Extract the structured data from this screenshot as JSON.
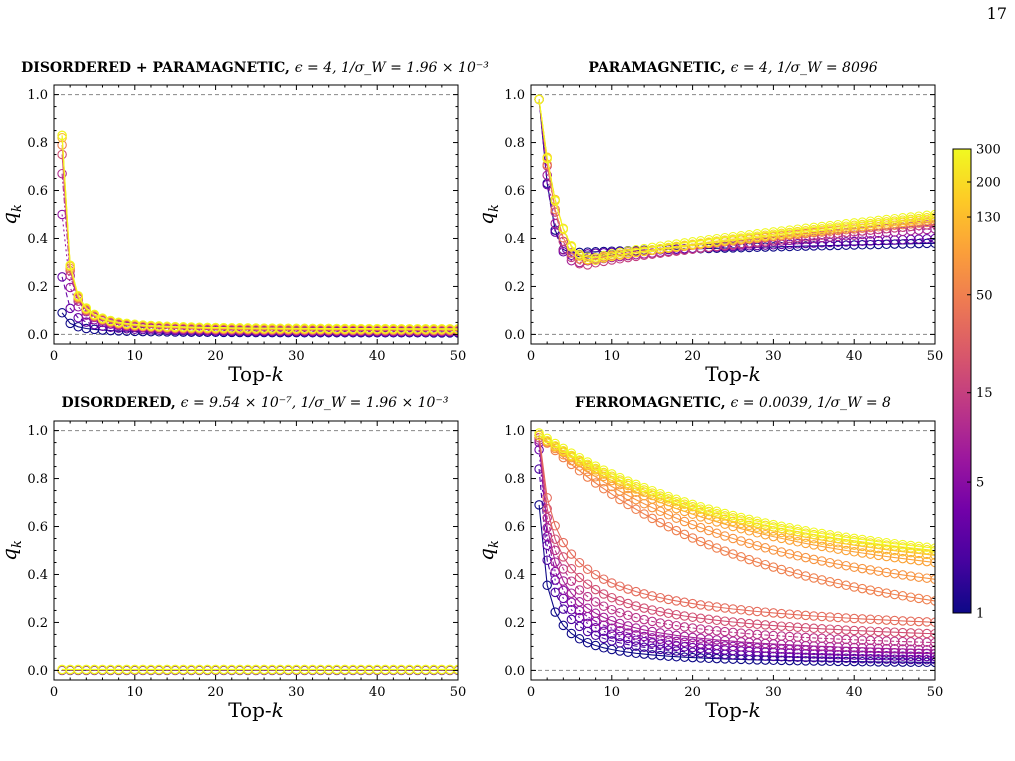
{
  "page_number": "17",
  "colorbar": {
    "colormap": "plasma",
    "colors": [
      "#0d0887",
      "#46039f",
      "#7201a8",
      "#9c179e",
      "#bd3786",
      "#d8576b",
      "#ed7953",
      "#fb9f3a",
      "#fdca26",
      "#f0f921"
    ],
    "tick_labels": [
      "1",
      "5",
      "15",
      "50",
      "130",
      "200",
      "300"
    ],
    "tick_values": [
      1,
      5,
      15,
      50,
      130,
      200,
      300
    ],
    "vmin": 1,
    "vmax": 300
  },
  "chart_data": [
    {
      "type": "line",
      "title": {
        "name": "DISORDERED + PARAMAGNETIC,",
        "params": "ϵ = 4,    1/σ_W = 1.96 × 10⁻³"
      },
      "xlabel": "Top-k",
      "ylabel": "q_k",
      "xlim": [
        0,
        50
      ],
      "ylim": [
        -0.04,
        1.04
      ],
      "x_ticks": [
        0,
        10,
        20,
        30,
        40,
        50
      ],
      "y_ticks": [
        "0.0",
        "0.2",
        "0.4",
        "0.6",
        "0.8",
        "1.0"
      ],
      "y_tick_values": [
        0,
        0.2,
        0.4,
        0.6,
        0.8,
        1.0
      ],
      "reference_lines": [
        0,
        1
      ],
      "x": {
        "start": 1,
        "end": 50
      },
      "series": [
        {
          "color_value": 1,
          "model": {
            "kind": "power",
            "y1": 0.09,
            "n": 1.05,
            "floor": 0.005
          }
        },
        {
          "color_value": 3,
          "model": {
            "kind": "power",
            "y1": 0.24,
            "n": 1.2,
            "floor": 0.007
          }
        },
        {
          "color_value": 6,
          "model": {
            "kind": "power",
            "y1": 0.5,
            "n": 1.4,
            "floor": 0.01
          }
        },
        {
          "color_value": 10,
          "model": {
            "kind": "power",
            "y1": 0.67,
            "n": 1.5,
            "floor": 0.012
          }
        },
        {
          "color_value": 20,
          "model": {
            "kind": "power",
            "y1": 0.75,
            "n": 1.55,
            "floor": 0.014
          }
        },
        {
          "color_value": 50,
          "model": {
            "kind": "power",
            "y1": 0.79,
            "n": 1.58,
            "floor": 0.016
          }
        },
        {
          "color_value": 130,
          "model": {
            "kind": "power",
            "y1": 0.82,
            "n": 1.6,
            "floor": 0.018
          }
        },
        {
          "color_value": 200,
          "model": {
            "kind": "power",
            "y1": 0.83,
            "n": 1.6,
            "floor": 0.02
          }
        },
        {
          "color_value": 300,
          "model": {
            "kind": "power",
            "y1": 0.83,
            "n": 1.6,
            "floor": 0.022
          }
        }
      ]
    },
    {
      "type": "line",
      "title": {
        "name": "PARAMAGNETIC,",
        "params": "ϵ = 4,    1/σ_W = 8096"
      },
      "xlabel": "Top-k",
      "ylabel": "q_k",
      "xlim": [
        0,
        50
      ],
      "ylim": [
        -0.04,
        1.04
      ],
      "x_ticks": [
        0,
        10,
        20,
        30,
        40,
        50
      ],
      "y_ticks": [
        "0.0",
        "0.2",
        "0.4",
        "0.6",
        "0.8",
        "1.0"
      ],
      "y_tick_values": [
        0,
        0.2,
        0.4,
        0.6,
        0.8,
        1.0
      ],
      "reference_lines": [
        0,
        1
      ],
      "x": {
        "start": 1,
        "end": 50
      },
      "series": [
        {
          "color_value": 1,
          "model": {
            "kind": "dip",
            "y1": 0.98,
            "ymin": 0.34,
            "kmin": 5,
            "yend": 0.38,
            "drop": 0.55
          }
        },
        {
          "color_value": 3,
          "model": {
            "kind": "dip",
            "y1": 0.98,
            "ymin": 0.33,
            "kmin": 5,
            "yend": 0.4,
            "drop": 0.55
          }
        },
        {
          "color_value": 8,
          "model": {
            "kind": "dip",
            "y1": 0.98,
            "ymin": 0.3,
            "kmin": 6,
            "yend": 0.44,
            "drop": 0.6
          }
        },
        {
          "color_value": 15,
          "model": {
            "kind": "dip",
            "y1": 0.98,
            "ymin": 0.29,
            "kmin": 7,
            "yend": 0.46,
            "drop": 0.62
          }
        },
        {
          "color_value": 50,
          "model": {
            "kind": "dip",
            "y1": 0.98,
            "ymin": 0.31,
            "kmin": 7,
            "yend": 0.47,
            "drop": 0.65
          }
        },
        {
          "color_value": 130,
          "model": {
            "kind": "dip",
            "y1": 0.98,
            "ymin": 0.31,
            "kmin": 8,
            "yend": 0.48,
            "drop": 0.7
          }
        },
        {
          "color_value": 200,
          "model": {
            "kind": "dip",
            "y1": 0.98,
            "ymin": 0.31,
            "kmin": 8,
            "yend": 0.49,
            "drop": 0.75
          }
        },
        {
          "color_value": 300,
          "model": {
            "kind": "dip",
            "y1": 0.98,
            "ymin": 0.32,
            "kmin": 8,
            "yend": 0.5,
            "drop": 0.85
          }
        }
      ]
    },
    {
      "type": "line",
      "title": {
        "name": "DISORDERED,",
        "params": "ϵ = 9.54 × 10⁻⁷,    1/σ_W = 1.96 × 10⁻³"
      },
      "xlabel": "Top-k",
      "ylabel": "q_k",
      "xlim": [
        0,
        50
      ],
      "ylim": [
        -0.04,
        1.04
      ],
      "x_ticks": [
        0,
        10,
        20,
        30,
        40,
        50
      ],
      "y_ticks": [
        "0.0",
        "0.2",
        "0.4",
        "0.6",
        "0.8",
        "1.0"
      ],
      "y_tick_values": [
        0,
        0.2,
        0.4,
        0.6,
        0.8,
        1.0
      ],
      "reference_lines": [
        0,
        1
      ],
      "x": {
        "start": 1,
        "end": 50
      },
      "series": [
        {
          "color_value": 1,
          "model": {
            "kind": "const",
            "y": 0.0
          }
        },
        {
          "color_value": 5,
          "model": {
            "kind": "const",
            "y": 0.001
          }
        },
        {
          "color_value": 15,
          "model": {
            "kind": "const",
            "y": 0.002
          }
        },
        {
          "color_value": 50,
          "model": {
            "kind": "const",
            "y": 0.002
          }
        },
        {
          "color_value": 130,
          "model": {
            "kind": "const",
            "y": 0.003
          }
        },
        {
          "color_value": 200,
          "model": {
            "kind": "const",
            "y": 0.003
          }
        },
        {
          "color_value": 300,
          "model": {
            "kind": "const",
            "y": 0.004
          }
        }
      ]
    },
    {
      "type": "line",
      "title": {
        "name": "FERROMAGNETIC,",
        "params": "ϵ = 0.0039,    1/σ_W = 8"
      },
      "xlabel": "Top-k",
      "ylabel": "q_k",
      "xlim": [
        0,
        50
      ],
      "ylim": [
        -0.04,
        1.04
      ],
      "x_ticks": [
        0,
        10,
        20,
        30,
        40,
        50
      ],
      "y_ticks": [
        "0.0",
        "0.2",
        "0.4",
        "0.6",
        "0.8",
        "1.0"
      ],
      "y_tick_values": [
        0,
        0.2,
        0.4,
        0.6,
        0.8,
        1.0
      ],
      "reference_lines": [
        0,
        1
      ],
      "x": {
        "start": 1,
        "end": 50
      },
      "series": [
        {
          "color_value": 1,
          "model": {
            "kind": "power",
            "y1": 0.69,
            "n": 1.0,
            "floor": 0.02
          }
        },
        {
          "color_value": 2,
          "model": {
            "kind": "power",
            "y1": 0.84,
            "n": 0.9,
            "floor": 0.02
          }
        },
        {
          "color_value": 3,
          "model": {
            "kind": "power",
            "y1": 0.92,
            "n": 0.85,
            "floor": 0.025
          }
        },
        {
          "color_value": 5,
          "model": {
            "kind": "power",
            "y1": 0.95,
            "n": 0.8,
            "floor": 0.03
          }
        },
        {
          "color_value": 8,
          "model": {
            "kind": "power",
            "y1": 0.96,
            "n": 0.72,
            "floor": 0.03
          }
        },
        {
          "color_value": 12,
          "model": {
            "kind": "power",
            "y1": 0.97,
            "n": 0.64,
            "floor": 0.04
          }
        },
        {
          "color_value": 20,
          "model": {
            "kind": "power",
            "y1": 0.97,
            "n": 0.56,
            "floor": 0.05
          }
        },
        {
          "color_value": 35,
          "model": {
            "kind": "power",
            "y1": 0.98,
            "n": 0.48,
            "floor": 0.06
          }
        },
        {
          "color_value": 50,
          "model": {
            "kind": "exp",
            "y1": 0.98,
            "yend": 0.29
          }
        },
        {
          "color_value": 70,
          "model": {
            "kind": "exp",
            "y1": 0.98,
            "yend": 0.38
          }
        },
        {
          "color_value": 90,
          "model": {
            "kind": "exp",
            "y1": 0.98,
            "yend": 0.45
          }
        },
        {
          "color_value": 130,
          "model": {
            "kind": "exp",
            "y1": 0.98,
            "yend": 0.48
          }
        },
        {
          "color_value": 200,
          "model": {
            "kind": "exp",
            "y1": 0.98,
            "yend": 0.5
          }
        },
        {
          "color_value": 300,
          "model": {
            "kind": "exp",
            "y1": 0.99,
            "yend": 0.51
          }
        }
      ]
    }
  ]
}
